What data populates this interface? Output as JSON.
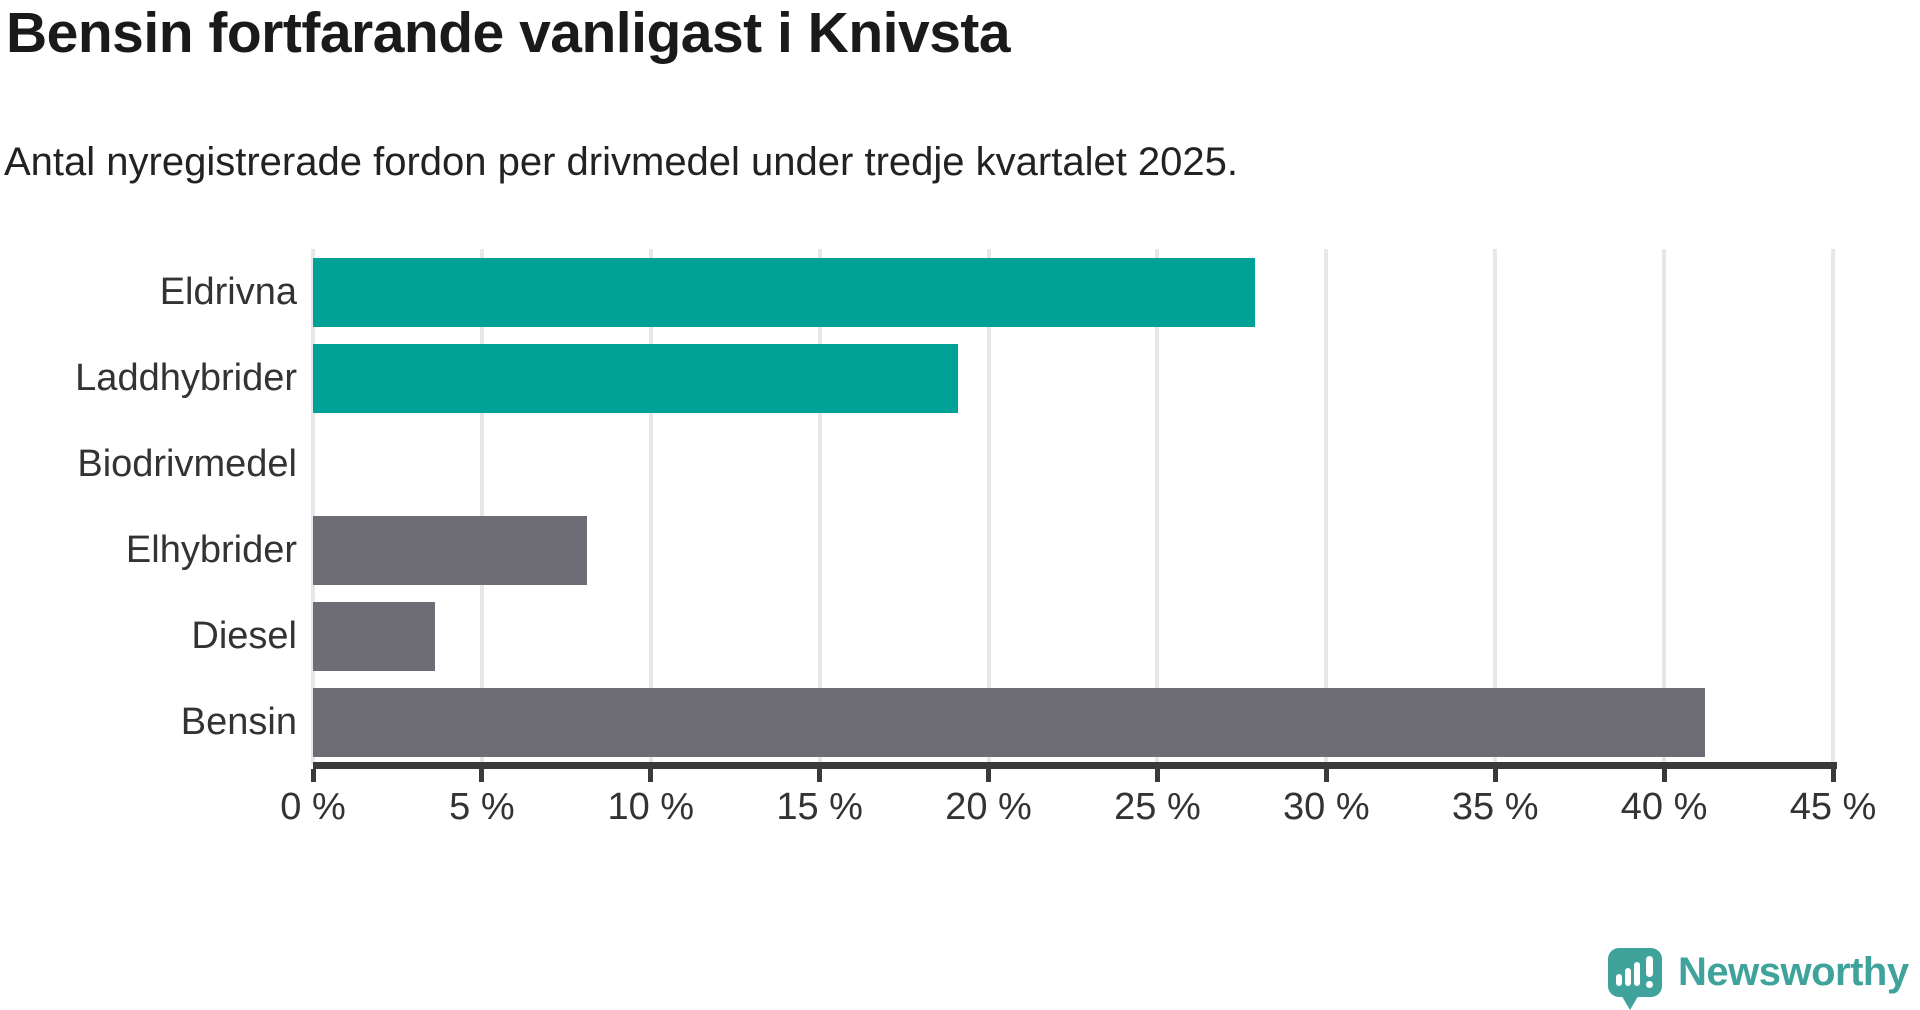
{
  "title": "Bensin fortfarande vanligast i Knivsta",
  "subtitle": "Antal nyregistrerade fordon per drivmedel under tredje kvartalet 2025.",
  "colors": {
    "teal": "#00a296",
    "gray": "#6e6c74",
    "gridline": "#e7e7e9",
    "axis": "#3a3a3a",
    "label_text": "#333333",
    "title_text": "#1a1a1a",
    "logo_teal": "#3fa39c"
  },
  "chart_data": {
    "type": "bar",
    "orientation": "horizontal",
    "title": "Bensin fortfarande vanligast i Knivsta",
    "subtitle": "Antal nyregistrerade fordon per drivmedel under tredje kvartalet 2025.",
    "categories": [
      "Eldrivna",
      "Laddhybrider",
      "Biodrivmedel",
      "Elhybrider",
      "Diesel",
      "Bensin"
    ],
    "values": [
      27.9,
      19.1,
      0,
      8.1,
      3.6,
      41.2
    ],
    "bar_colors": [
      "#00a296",
      "#00a296",
      "#00a296",
      "#6e6c74",
      "#6e6c74",
      "#6e6c74"
    ],
    "xlim": [
      0,
      45
    ],
    "x_ticks": [
      0,
      5,
      10,
      15,
      20,
      25,
      30,
      35,
      40,
      45
    ],
    "x_tick_labels": [
      "0 %",
      "5 %",
      "10 %",
      "15 %",
      "20 %",
      "25 %",
      "30 %",
      "35 %",
      "40 %",
      "45 %"
    ],
    "grid": true,
    "legend": false
  },
  "footer": {
    "brand": "Newsworthy",
    "logo_icon": "newsworthy-speech-bubble-chart-icon"
  }
}
